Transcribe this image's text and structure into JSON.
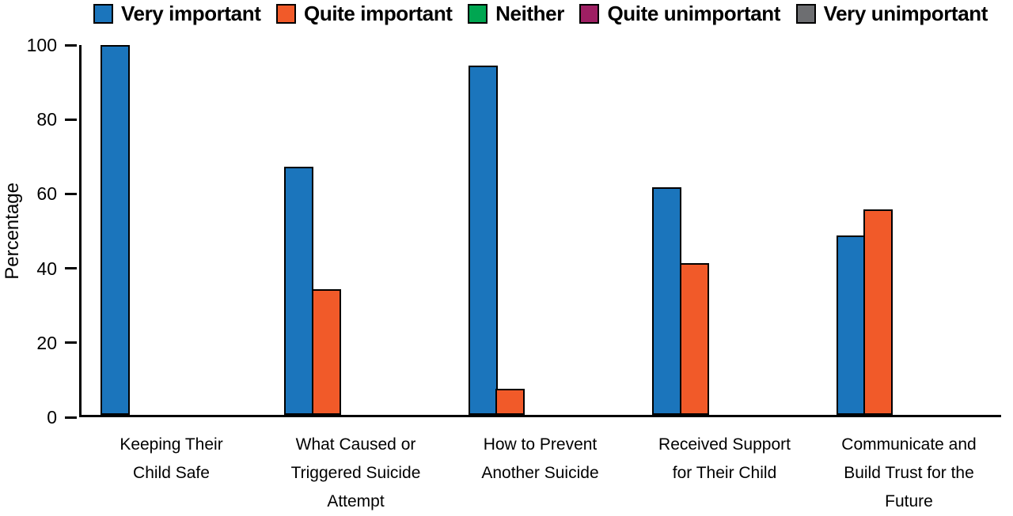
{
  "chart_data": {
    "type": "bar",
    "ylabel": "Percentage",
    "ylim": [
      0,
      100
    ],
    "yticks": [
      0,
      20,
      40,
      60,
      80,
      100
    ],
    "grid": false,
    "legend_position": "top",
    "background": "#ffffff",
    "bar_outline_color": "#000000",
    "categories": [
      "Keeping Their Child Safe",
      "What Caused or Triggered Suicide Attempt",
      "How to Prevent Another Suicide",
      "Received Support for Their Child",
      "Communicate and Build Trust for the Future"
    ],
    "series": [
      {
        "name": "Very important",
        "color": "#1b75bc",
        "values": [
          100,
          67,
          94.5,
          61.5,
          48.5
        ]
      },
      {
        "name": "Quite important",
        "color": "#f15a29",
        "values": [
          0,
          34,
          7,
          41,
          55.5
        ]
      },
      {
        "name": "Neither",
        "color": "#00a651",
        "values": [
          0,
          0,
          0,
          0,
          0
        ]
      },
      {
        "name": "Quite unimportant",
        "color": "#9e1f63",
        "values": [
          0,
          0,
          0,
          0,
          0
        ]
      },
      {
        "name": "Very unimportant",
        "color": "#6d6e71",
        "values": [
          0,
          0,
          0,
          0,
          0
        ]
      }
    ]
  }
}
